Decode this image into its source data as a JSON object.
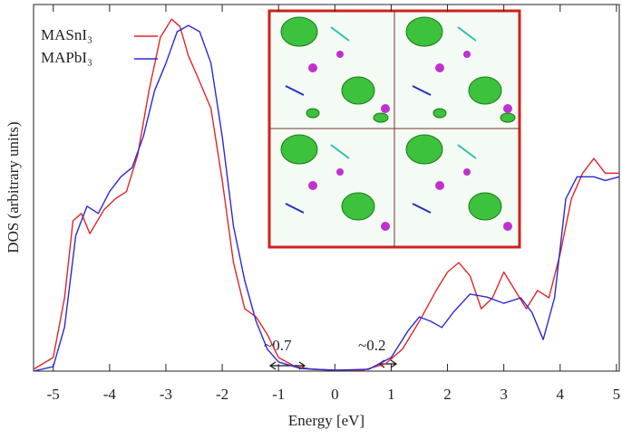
{
  "chart_data": {
    "type": "line",
    "xlabel": "Energy [eV]",
    "ylabel": "DOS (arbitrary units)",
    "xlim": [
      -5.35,
      5.05
    ],
    "xticks": [
      -5,
      -4,
      -3,
      -2,
      -1,
      0,
      1,
      2,
      3,
      4,
      5
    ],
    "ylim": [
      0,
      100
    ],
    "legend": "upper left",
    "annotations": [
      "~0.7",
      "~0.2"
    ],
    "series": [
      {
        "name": "MASnI₃",
        "color": "#e0262a",
        "x": [
          -5.35,
          -5.0,
          -4.8,
          -4.65,
          -4.5,
          -4.35,
          -4.1,
          -3.9,
          -3.7,
          -3.5,
          -3.3,
          -3.1,
          -2.9,
          -2.75,
          -2.6,
          -2.4,
          -2.2,
          -2.0,
          -1.8,
          -1.6,
          -1.4,
          -1.2,
          -1.0,
          -0.7,
          -0.4,
          0,
          0.5,
          0.9,
          1.2,
          1.5,
          1.8,
          2.0,
          2.2,
          2.4,
          2.6,
          2.8,
          3.0,
          3.2,
          3.4,
          3.6,
          3.8,
          4.0,
          4.2,
          4.4,
          4.6,
          4.8,
          5.05
        ],
        "values": [
          0.5,
          3.7,
          20,
          41,
          43,
          37.5,
          44,
          47,
          49,
          59,
          76.5,
          91,
          96,
          94,
          86,
          79,
          71.6,
          52,
          29.6,
          17,
          14.8,
          10,
          3.7,
          1.2,
          0.5,
          0.25,
          0.25,
          2,
          6,
          13.6,
          22,
          27,
          29.6,
          26,
          17,
          20,
          27,
          22,
          17,
          22,
          20,
          32,
          47,
          54,
          58,
          54,
          54
        ]
      },
      {
        "name": "MAPbI₃",
        "color": "#2a2ad0",
        "x": [
          -5.35,
          -5.0,
          -4.8,
          -4.6,
          -4.4,
          -4.2,
          -4.0,
          -3.8,
          -3.6,
          -3.4,
          -3.2,
          -3.0,
          -2.8,
          -2.6,
          -2.4,
          -2.2,
          -2.0,
          -1.8,
          -1.6,
          -1.4,
          -1.2,
          -1.0,
          -0.6,
          0,
          0.6,
          1.0,
          1.3,
          1.5,
          1.7,
          1.9,
          2.1,
          2.4,
          2.7,
          3.0,
          3.3,
          3.5,
          3.7,
          3.9,
          4.1,
          4.3,
          4.6,
          4.8,
          5.05
        ],
        "values": [
          0,
          1.2,
          12,
          37,
          45,
          43,
          49,
          53,
          55.5,
          64,
          76.5,
          84,
          92.6,
          94.3,
          92.6,
          84,
          64,
          39.5,
          24.7,
          13.6,
          6,
          2.5,
          0.7,
          0.25,
          0.5,
          3.7,
          11,
          14.8,
          13.6,
          11.9,
          16,
          21,
          20.2,
          18.5,
          20,
          16,
          8.6,
          20,
          47,
          53,
          53,
          52,
          53
        ]
      }
    ]
  }
}
